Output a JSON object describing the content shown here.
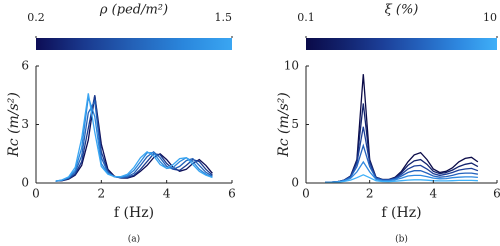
{
  "chart_data": [
    {
      "type": "line",
      "caption": "(a)",
      "x_label": "f (Hz)",
      "y_label": "Rc (m/s²)",
      "colorbar": {
        "label": "ρ (ped/m²)",
        "lim": [
          0.2,
          1.5
        ],
        "ticks": [
          0.2,
          1.5
        ]
      },
      "xlim": [
        0,
        6
      ],
      "ylim": [
        0,
        6
      ],
      "xticks": [
        0,
        2,
        4,
        6
      ],
      "yticks": [
        0,
        3,
        6
      ],
      "x": [
        0.6,
        0.8,
        1.0,
        1.2,
        1.4,
        1.6,
        1.8,
        2.0,
        2.2,
        2.4,
        2.6,
        2.8,
        3.0,
        3.2,
        3.4,
        3.6,
        3.8,
        4.0,
        4.2,
        4.4,
        4.6,
        4.8,
        5.0,
        5.2,
        5.4
      ],
      "series": [
        {
          "color": "#0d0d55",
          "values": [
            0.1,
            0.12,
            0.2,
            0.4,
            0.9,
            2.2,
            4.5,
            2.0,
            0.7,
            0.35,
            0.25,
            0.25,
            0.35,
            0.6,
            0.9,
            1.3,
            1.5,
            1.2,
            0.8,
            0.6,
            0.7,
            1.0,
            1.2,
            0.9,
            0.5
          ]
        },
        {
          "color": "#1a3a8f",
          "values": [
            0.1,
            0.13,
            0.22,
            0.45,
            1.1,
            2.8,
            4.5,
            1.6,
            0.6,
            0.33,
            0.26,
            0.28,
            0.4,
            0.7,
            1.1,
            1.5,
            1.45,
            1.0,
            0.7,
            0.65,
            0.9,
            1.2,
            1.1,
            0.7,
            0.4
          ]
        },
        {
          "color": "#2462b8",
          "values": [
            0.1,
            0.14,
            0.25,
            0.55,
            1.4,
            3.6,
            4.2,
            1.3,
            0.55,
            0.32,
            0.27,
            0.32,
            0.5,
            0.9,
            1.35,
            1.6,
            1.3,
            0.85,
            0.7,
            0.85,
            1.15,
            1.25,
            0.9,
            0.55,
            0.35
          ]
        },
        {
          "color": "#2a86dc",
          "values": [
            0.1,
            0.15,
            0.28,
            0.65,
            1.8,
            4.4,
            3.4,
            1.0,
            0.5,
            0.32,
            0.3,
            0.38,
            0.65,
            1.1,
            1.55,
            1.55,
            1.1,
            0.75,
            0.8,
            1.1,
            1.3,
            1.1,
            0.7,
            0.45,
            0.3
          ]
        },
        {
          "color": "#3aa6f2",
          "values": [
            0.1,
            0.16,
            0.32,
            0.8,
            2.3,
            4.6,
            2.6,
            0.85,
            0.45,
            0.33,
            0.33,
            0.45,
            0.8,
            1.3,
            1.6,
            1.4,
            0.95,
            0.75,
            0.95,
            1.25,
            1.3,
            0.95,
            0.6,
            0.4,
            0.28
          ]
        }
      ]
    },
    {
      "type": "line",
      "caption": "(b)",
      "x_label": "f (Hz)",
      "y_label": "Rc (m/s²)",
      "colorbar": {
        "label": "ξ (%)",
        "lim": [
          0.1,
          10
        ],
        "ticks": [
          0.1,
          10
        ]
      },
      "xlim": [
        0,
        6
      ],
      "ylim": [
        0,
        10
      ],
      "xticks": [
        0,
        2,
        4,
        6
      ],
      "yticks": [
        0,
        5,
        10
      ],
      "x": [
        0.6,
        0.8,
        1.0,
        1.2,
        1.4,
        1.6,
        1.8,
        2.0,
        2.2,
        2.4,
        2.6,
        2.8,
        3.0,
        3.2,
        3.4,
        3.6,
        3.8,
        4.0,
        4.2,
        4.4,
        4.6,
        4.8,
        5.0,
        5.2,
        5.4
      ],
      "series": [
        {
          "color": "#0a0a48",
          "values": [
            0.05,
            0.07,
            0.12,
            0.25,
            0.6,
            2.0,
            9.3,
            2.0,
            0.5,
            0.3,
            0.3,
            0.5,
            1.0,
            1.8,
            2.4,
            2.6,
            2.0,
            1.2,
            0.9,
            1.0,
            1.3,
            1.8,
            2.1,
            2.2,
            1.8
          ]
        },
        {
          "color": "#12236e",
          "values": [
            0.05,
            0.07,
            0.12,
            0.25,
            0.6,
            1.9,
            6.8,
            1.9,
            0.5,
            0.3,
            0.3,
            0.45,
            0.9,
            1.5,
            1.9,
            2.0,
            1.6,
            1.0,
            0.8,
            0.9,
            1.1,
            1.4,
            1.6,
            1.7,
            1.4
          ]
        },
        {
          "color": "#1c3f98",
          "values": [
            0.05,
            0.07,
            0.12,
            0.24,
            0.55,
            1.7,
            4.8,
            1.7,
            0.45,
            0.28,
            0.28,
            0.4,
            0.75,
            1.2,
            1.45,
            1.5,
            1.2,
            0.8,
            0.65,
            0.75,
            0.9,
            1.1,
            1.2,
            1.25,
            1.05
          ]
        },
        {
          "color": "#2462bd",
          "values": [
            0.05,
            0.07,
            0.11,
            0.22,
            0.5,
            1.4,
            3.2,
            1.4,
            0.4,
            0.25,
            0.25,
            0.35,
            0.6,
            0.9,
            1.05,
            1.05,
            0.85,
            0.6,
            0.5,
            0.55,
            0.65,
            0.8,
            0.85,
            0.85,
            0.75
          ]
        },
        {
          "color": "#2e88e0",
          "values": [
            0.05,
            0.06,
            0.1,
            0.2,
            0.4,
            0.95,
            1.8,
            0.95,
            0.32,
            0.2,
            0.2,
            0.28,
            0.42,
            0.6,
            0.65,
            0.65,
            0.55,
            0.42,
            0.36,
            0.38,
            0.45,
            0.5,
            0.52,
            0.52,
            0.48
          ]
        },
        {
          "color": "#3fb0f8",
          "values": [
            0.04,
            0.05,
            0.08,
            0.14,
            0.25,
            0.45,
            0.7,
            0.45,
            0.2,
            0.13,
            0.12,
            0.15,
            0.2,
            0.25,
            0.27,
            0.27,
            0.24,
            0.2,
            0.18,
            0.18,
            0.2,
            0.22,
            0.22,
            0.22,
            0.2
          ]
        }
      ]
    }
  ]
}
